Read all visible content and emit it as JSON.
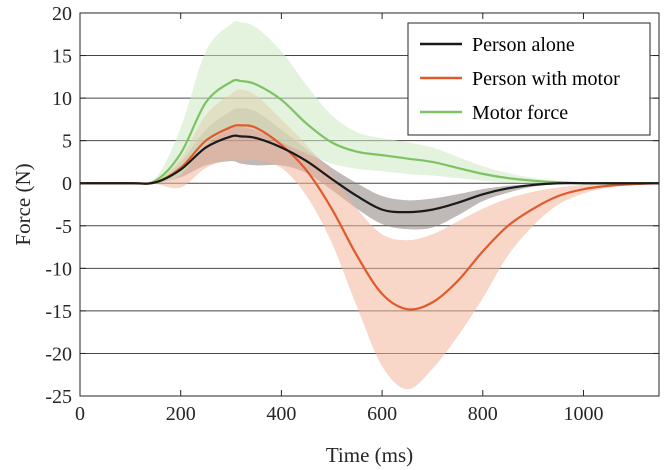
{
  "chart_data": {
    "type": "line",
    "xlabel": "Time (ms)",
    "ylabel": "Force (N)",
    "xlim": [
      0,
      1150
    ],
    "ylim": [
      -25,
      20
    ],
    "xticks": [
      0,
      200,
      400,
      600,
      800,
      1000
    ],
    "yticks": [
      -25,
      -20,
      -15,
      -10,
      -5,
      0,
      5,
      10,
      15,
      20
    ],
    "grid": "horizontal",
    "legend_position": "top-right",
    "x": [
      0,
      100,
      150,
      200,
      250,
      300,
      320,
      350,
      400,
      450,
      500,
      550,
      600,
      650,
      700,
      750,
      800,
      850,
      900,
      950,
      1000,
      1050,
      1100,
      1150
    ],
    "series": [
      {
        "name": "Person alone",
        "color": "#1a1a1a",
        "band_color": "#8a7f7c",
        "mean": [
          0,
          0,
          0.1,
          1.6,
          4.2,
          5.5,
          5.5,
          5.3,
          4.2,
          2.6,
          0.5,
          -1.5,
          -3.1,
          -3.4,
          -3.1,
          -2.3,
          -1.3,
          -0.6,
          -0.2,
          0,
          0,
          0,
          0,
          0
        ],
        "upper": [
          0,
          0,
          0.2,
          2.5,
          6.3,
          8.5,
          8.8,
          8.4,
          6.3,
          4.0,
          1.8,
          0,
          -1.5,
          -2.0,
          -1.8,
          -1.3,
          -0.7,
          -0.3,
          -0.1,
          0,
          0,
          0,
          0,
          0
        ],
        "lower": [
          0,
          0,
          0,
          0.7,
          2.1,
          2.6,
          2.3,
          2.1,
          2.1,
          1.2,
          -0.8,
          -3.0,
          -4.8,
          -5.4,
          -5.2,
          -3.8,
          -2.1,
          -1.1,
          -0.4,
          -0.1,
          0,
          0,
          0,
          0
        ]
      },
      {
        "name": "Person with motor",
        "color": "#e05a2b",
        "band_color": "#f2b49a",
        "mean": [
          0,
          0,
          0.1,
          1.8,
          5.0,
          6.6,
          6.8,
          6.5,
          4.5,
          1.5,
          -3.0,
          -8.5,
          -13.0,
          -14.8,
          -14.0,
          -11.5,
          -8.0,
          -5.0,
          -3.0,
          -1.5,
          -0.7,
          -0.3,
          -0.1,
          0
        ],
        "upper": [
          0,
          0,
          0.3,
          3.0,
          8.0,
          10.5,
          11.0,
          10.3,
          7.5,
          4.5,
          1.0,
          -3.0,
          -6.0,
          -6.7,
          -6.0,
          -4.5,
          -3.0,
          -1.8,
          -1.0,
          -0.5,
          -0.2,
          -0.1,
          0,
          0
        ],
        "lower": [
          0,
          0,
          -0.1,
          -0.5,
          1.8,
          2.8,
          2.6,
          2.7,
          1.8,
          -1.5,
          -7.0,
          -14.5,
          -21.5,
          -24.2,
          -21.8,
          -18.0,
          -13.5,
          -8.5,
          -5.0,
          -2.5,
          -1.2,
          -0.5,
          -0.2,
          0
        ]
      },
      {
        "name": "Motor force",
        "color": "#7dc263",
        "band_color": "#cde9c2",
        "mean": [
          0,
          0,
          0.3,
          3.5,
          9.5,
          11.9,
          12.0,
          11.6,
          9.8,
          7.0,
          4.8,
          3.7,
          3.3,
          2.9,
          2.5,
          1.8,
          1.1,
          0.6,
          0.3,
          0.1,
          0,
          0,
          0,
          0
        ],
        "upper": [
          0,
          0,
          0.6,
          6.5,
          15.5,
          18.7,
          18.9,
          18.3,
          15.5,
          11.5,
          8.0,
          6.0,
          5.3,
          4.8,
          4.2,
          3.1,
          2.0,
          1.2,
          0.6,
          0.3,
          0.1,
          0,
          0,
          0
        ],
        "lower": [
          0,
          0,
          0,
          1.0,
          4.5,
          6.5,
          6.6,
          6.2,
          4.8,
          3.5,
          2.3,
          1.7,
          1.4,
          1.1,
          0.9,
          0.6,
          0.3,
          0.1,
          0,
          0,
          0,
          0,
          0,
          0
        ]
      }
    ]
  }
}
